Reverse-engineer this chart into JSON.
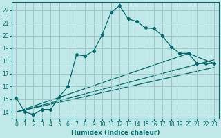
{
  "xlabel": "Humidex (Indice chaleur)",
  "ylabel": "",
  "background_color": "#c0e8e8",
  "grid_color": "#a0c8c8",
  "line_color": "#006868",
  "xlim": [
    -0.5,
    23.5
  ],
  "ylim": [
    13.5,
    22.6
  ],
  "yticks": [
    14,
    15,
    16,
    17,
    18,
    19,
    20,
    21,
    22
  ],
  "xticks": [
    0,
    1,
    2,
    3,
    4,
    5,
    6,
    7,
    8,
    9,
    10,
    11,
    12,
    13,
    14,
    15,
    16,
    17,
    18,
    19,
    20,
    21,
    22,
    23
  ],
  "curve1_x": [
    0,
    1,
    2,
    3,
    4,
    5,
    6,
    7,
    8,
    9,
    10,
    11,
    12,
    13,
    14,
    15,
    16,
    17,
    18,
    19,
    20,
    21,
    22,
    23
  ],
  "curve1_y": [
    15.1,
    14.0,
    13.8,
    14.2,
    14.2,
    15.2,
    16.0,
    18.5,
    18.4,
    18.8,
    20.1,
    21.8,
    22.35,
    21.3,
    21.1,
    20.6,
    20.55,
    19.95,
    19.1,
    18.6,
    18.6,
    17.8,
    17.8,
    17.8
  ],
  "curve2_x": [
    0,
    20,
    23
  ],
  "curve2_y": [
    14.0,
    18.6,
    17.8
  ],
  "curve3_x": [
    0,
    23
  ],
  "curve3_y": [
    14.0,
    18.1
  ],
  "curve4_x": [
    0,
    23
  ],
  "curve4_y": [
    14.0,
    17.5
  ]
}
